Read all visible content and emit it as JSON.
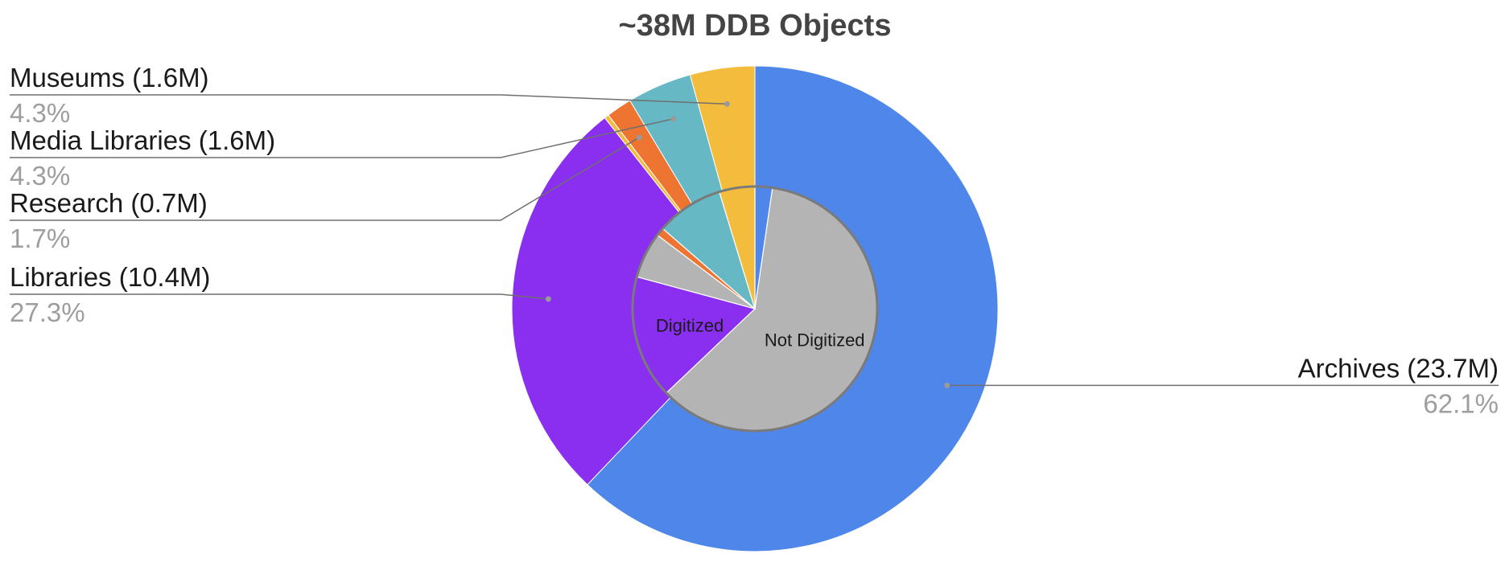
{
  "chart_data": {
    "type": "pie",
    "title": "~38M DDB Objects",
    "outer_ring": {
      "slices": [
        {
          "label": "Archives (23.7M)",
          "percent_label": "62.1%",
          "value": 62.1,
          "color": "#4f86ea"
        },
        {
          "label": "Libraries (10.4M)",
          "percent_label": "27.3%",
          "value": 27.3,
          "color": "#8a2ff0"
        },
        {
          "label": "",
          "percent_label": "",
          "value": 0.3,
          "color": "#f3bc3c"
        },
        {
          "label": "Research (0.7M)",
          "percent_label": "1.7%",
          "value": 1.7,
          "color": "#ed7431"
        },
        {
          "label": "Media Libraries (1.6M)",
          "percent_label": "4.3%",
          "value": 4.3,
          "color": "#66b8c5"
        },
        {
          "label": "Museums (1.6M)",
          "percent_label": "4.3%",
          "value": 4.3,
          "color": "#f3bc3c"
        }
      ]
    },
    "inner_pie": {
      "slices": [
        {
          "label": "",
          "value": 2.3,
          "color": "#4f86ea"
        },
        {
          "label": "Not Digitized",
          "value": 60.6,
          "color": "#b4b4b4"
        },
        {
          "label": "Digitized",
          "value": 16.3,
          "color": "#8a2ff0"
        },
        {
          "label": "",
          "value": 6.1,
          "color": "#b4b4b4"
        },
        {
          "label": "",
          "value": 1.1,
          "color": "#ed7431"
        },
        {
          "label": "",
          "value": 8.9,
          "color": "#66b8c5"
        },
        {
          "label": "",
          "value": 4.7,
          "color": "#f3bc3c"
        }
      ]
    },
    "legend": "none"
  }
}
